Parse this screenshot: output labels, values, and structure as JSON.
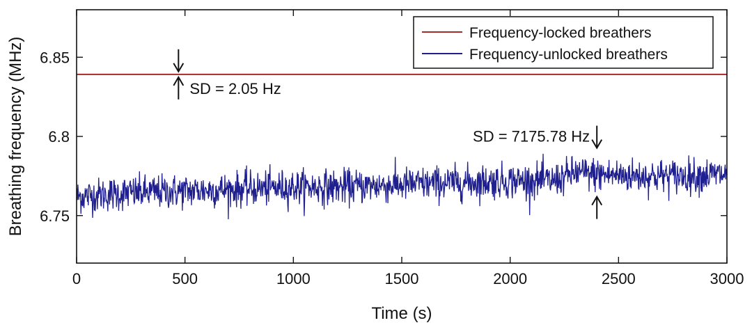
{
  "chart_data": {
    "type": "line",
    "xlabel": "Time (s)",
    "ylabel": "Breathing frequency (MHz)",
    "xlim": [
      0,
      3000
    ],
    "ylim": [
      6.72,
      6.88
    ],
    "xticks": [
      0,
      500,
      1000,
      1500,
      2000,
      2500,
      3000
    ],
    "xtick_labels": [
      "0",
      "500",
      "1000",
      "1500",
      "2000",
      "2500",
      "3000"
    ],
    "yticks": [
      6.75,
      6.8,
      6.85
    ],
    "ytick_labels": [
      "6.75",
      "6.8",
      "6.85"
    ],
    "grid": false,
    "legend_position": "top-right",
    "series": [
      {
        "name": "Frequency-locked breathers",
        "color": "#a52a2a",
        "x": [
          0,
          3000
        ],
        "y": [
          6.8392,
          6.8392
        ]
      },
      {
        "name": "Frequency-unlocked breathers",
        "color": "#1f1f8f",
        "x": [
          0,
          200,
          400,
          600,
          800,
          1000,
          1200,
          1400,
          1600,
          1800,
          2000,
          2200,
          2300,
          2400,
          2600,
          2800,
          3000
        ],
        "y": [
          6.762,
          6.764,
          6.765,
          6.766,
          6.767,
          6.768,
          6.768,
          6.769,
          6.77,
          6.771,
          6.772,
          6.772,
          6.777,
          6.776,
          6.775,
          6.775,
          6.776
        ],
        "noise_sd_mhz": 0.0072
      }
    ],
    "annotations": [
      {
        "text": "SD = 2.05 Hz",
        "x": 470,
        "y": 6.8392
      },
      {
        "text": "SD = 7175.78 Hz",
        "x": 2400,
        "y": 6.776
      }
    ]
  }
}
